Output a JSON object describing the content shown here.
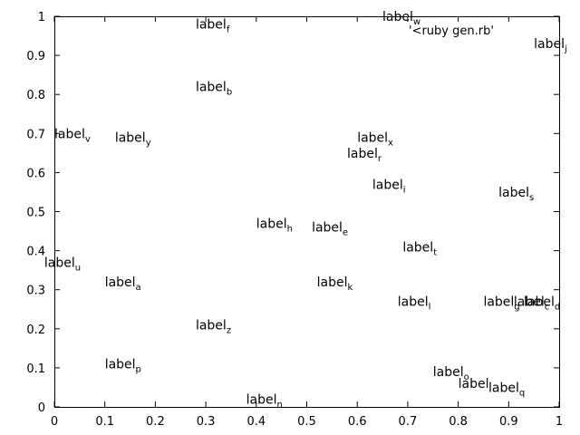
{
  "chart_data": {
    "type": "scatter",
    "xlim": [
      0,
      1
    ],
    "ylim": [
      0,
      1
    ],
    "xticks": [
      "0",
      "0.1",
      "0.2",
      "0.3",
      "0.4",
      "0.5",
      "0.6",
      "0.7",
      "0.8",
      "0.9",
      "1"
    ],
    "yticks": [
      "0",
      "0.1",
      "0.2",
      "0.3",
      "0.4",
      "0.5",
      "0.6",
      "0.7",
      "0.8",
      "0.9",
      "1"
    ],
    "grid": false,
    "legend": {
      "text": "'<ruby gen.rb'",
      "placement": "top-right"
    },
    "points": [
      {
        "base": "label",
        "sub": "a",
        "x": 0.1,
        "y": 0.32
      },
      {
        "base": "label",
        "sub": "b",
        "x": 0.28,
        "y": 0.82
      },
      {
        "base": "label",
        "sub": "c",
        "x": 0.91,
        "y": 0.27
      },
      {
        "base": "label",
        "sub": "d",
        "x": 0.93,
        "y": 0.27
      },
      {
        "base": "label",
        "sub": "e",
        "x": 0.51,
        "y": 0.46
      },
      {
        "base": "label",
        "sub": "f",
        "x": 0.28,
        "y": 0.98
      },
      {
        "base": "label",
        "sub": "g",
        "x": 0.85,
        "y": 0.27
      },
      {
        "base": "label",
        "sub": "h",
        "x": 0.4,
        "y": 0.47
      },
      {
        "base": "label",
        "sub": "i",
        "x": 0.63,
        "y": 0.57
      },
      {
        "base": "label",
        "sub": "j",
        "x": 0.95,
        "y": 0.93
      },
      {
        "base": "label",
        "sub": "k",
        "x": 0.52,
        "y": 0.32
      },
      {
        "base": "label",
        "sub": "l",
        "x": 0.68,
        "y": 0.27
      },
      {
        "base": "label",
        "sub": "n",
        "x": 0.38,
        "y": 0.02
      },
      {
        "base": "label",
        "sub": "o",
        "x": 0.75,
        "y": 0.09
      },
      {
        "base": "label",
        "sub": "p",
        "x": 0.1,
        "y": 0.11
      },
      {
        "base": "label",
        "sub": "q",
        "x": 0.86,
        "y": 0.05
      },
      {
        "base": "label",
        "sub": "r",
        "x": 0.58,
        "y": 0.65
      },
      {
        "base": "label",
        "sub": "s",
        "x": 0.88,
        "y": 0.55
      },
      {
        "base": "label",
        "sub": "t",
        "x": 0.69,
        "y": 0.41
      },
      {
        "base": "label",
        "sub": "u",
        "x": -0.02,
        "y": 0.37
      },
      {
        "base": "label",
        "sub": "v",
        "x": 0.0,
        "y": 0.7
      },
      {
        "base": "label",
        "sub": "w",
        "x": 0.65,
        "y": 1.0
      },
      {
        "base": "label",
        "sub": "x",
        "x": 0.6,
        "y": 0.69
      },
      {
        "base": "label",
        "sub": "y",
        "x": 0.12,
        "y": 0.69
      },
      {
        "base": "label",
        "sub": "z",
        "x": 0.28,
        "y": 0.21
      },
      {
        "base": "label",
        "sub": "",
        "x": 0.8,
        "y": 0.06
      }
    ]
  }
}
